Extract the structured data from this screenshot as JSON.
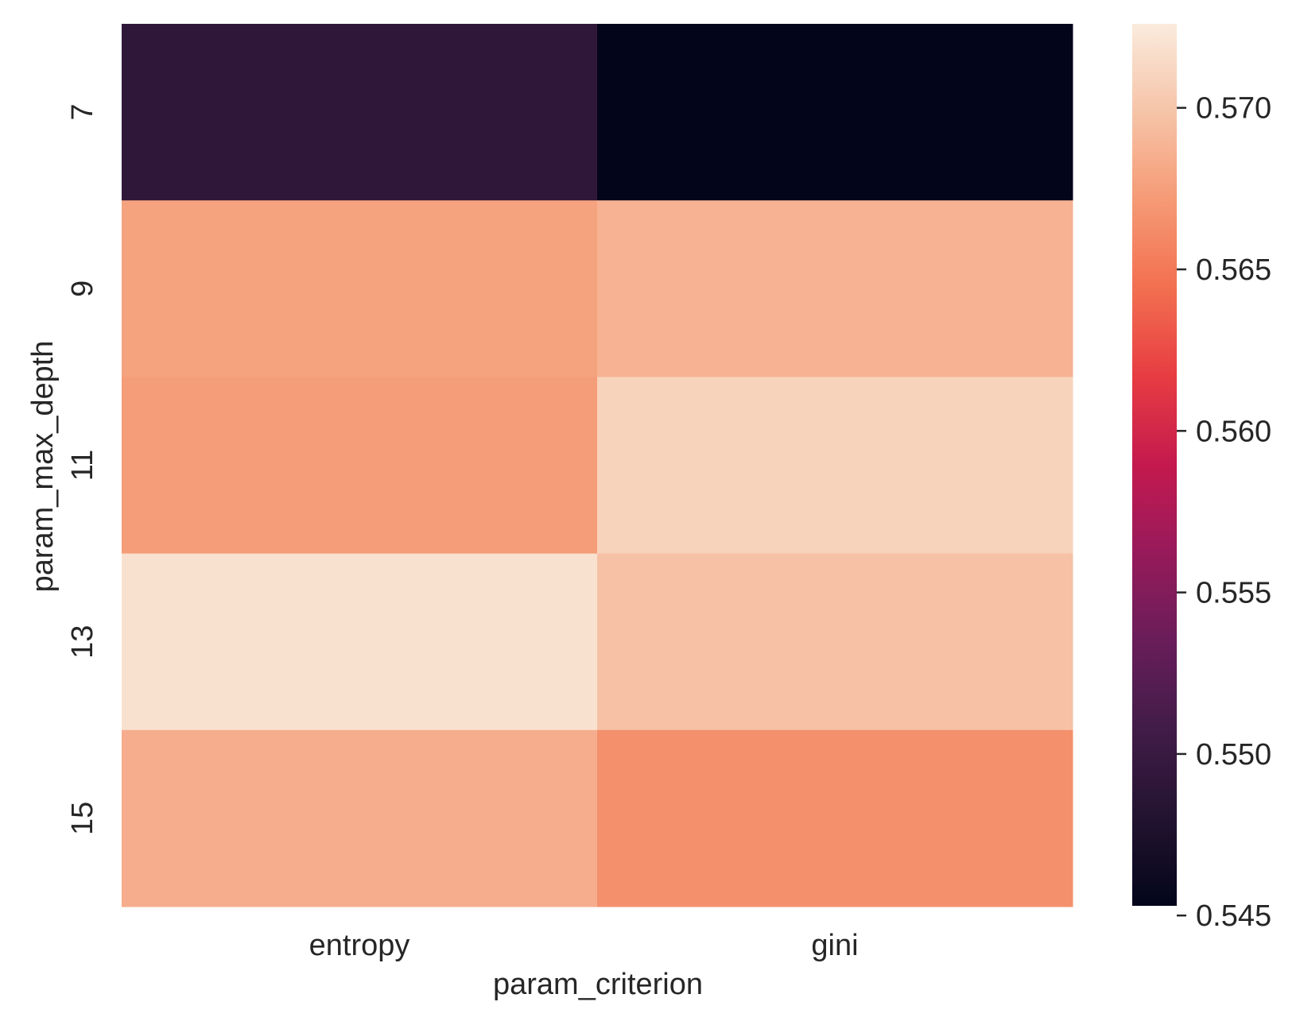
{
  "chart_data": {
    "type": "heatmap",
    "title": "",
    "xlabel": "param_criterion",
    "ylabel": "param_max_depth",
    "x_categories": [
      "entropy",
      "gini"
    ],
    "y_categories": [
      "7",
      "9",
      "11",
      "13",
      "15"
    ],
    "values": [
      [
        0.5492,
        0.5453
      ],
      [
        0.5677,
        0.5687
      ],
      [
        0.5673,
        0.5709
      ],
      [
        0.5719,
        0.5697
      ],
      [
        0.5684,
        0.5665
      ]
    ],
    "colorbar": {
      "min": 0.5453,
      "max": 0.5726,
      "ticks": [
        0.545,
        0.55,
        0.555,
        0.56,
        0.565,
        0.57
      ],
      "tick_labels": [
        "0.545",
        "0.550",
        "0.555",
        "0.560",
        "0.565",
        "0.570"
      ],
      "colormap": "rocket"
    },
    "grid": false
  }
}
